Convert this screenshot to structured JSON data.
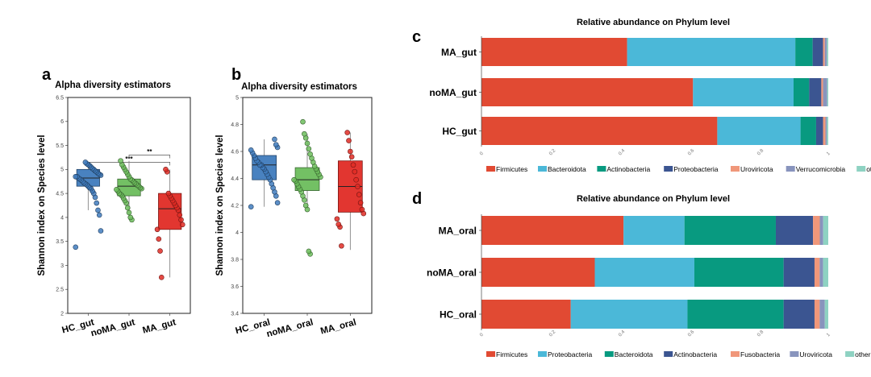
{
  "chart_data": [
    {
      "panel": "a",
      "type": "box",
      "title": "Alpha diversity estimators",
      "ylabel": "Shannon index on Species level",
      "ylim": [
        2,
        6.5
      ],
      "yticks": [
        2,
        2.5,
        3,
        3.5,
        4,
        4.5,
        5,
        5.5,
        6,
        6.5
      ],
      "groups": [
        {
          "name": "HC_gut",
          "color": "#3f7bbd",
          "q1": 4.65,
          "median": 4.82,
          "q3": 5.0,
          "whisker_low": 4.15,
          "whisker_high": 5.15,
          "points": [
            3.38,
            3.72,
            4.05,
            4.15,
            4.3,
            4.42,
            4.5,
            4.55,
            4.6,
            4.62,
            4.65,
            4.68,
            4.7,
            4.72,
            4.75,
            4.78,
            4.8,
            4.82,
            4.85,
            4.85,
            4.88,
            4.9,
            4.92,
            4.95,
            4.97,
            5.0,
            5.02,
            5.05,
            5.08,
            5.1,
            5.12,
            5.15
          ]
        },
        {
          "name": "noMA_gut",
          "color": "#6cbd5c",
          "q1": 4.45,
          "median": 4.65,
          "q3": 4.8,
          "whisker_low": 3.95,
          "whisker_high": 5.18,
          "points": [
            3.95,
            4.0,
            4.1,
            4.2,
            4.3,
            4.35,
            4.4,
            4.45,
            4.48,
            4.5,
            4.55,
            4.58,
            4.6,
            4.62,
            4.65,
            4.67,
            4.7,
            4.72,
            4.75,
            4.78,
            4.8,
            4.85,
            4.9,
            4.95,
            5.0,
            5.05,
            5.1,
            5.18
          ]
        },
        {
          "name": "MA_gut",
          "color": "#e02b25",
          "q1": 3.75,
          "median": 4.18,
          "q3": 4.5,
          "whisker_low": 2.75,
          "whisker_high": 5.0,
          "points": [
            2.75,
            3.3,
            3.55,
            3.75,
            3.85,
            3.95,
            4.05,
            4.15,
            4.2,
            4.25,
            4.3,
            4.35,
            4.4,
            4.45,
            4.5,
            4.95,
            5.0
          ]
        }
      ],
      "significance": [
        {
          "from": "HC_gut",
          "to": "MA_gut",
          "label": "***",
          "y": 5.15
        },
        {
          "from": "noMA_gut",
          "to": "MA_gut",
          "label": "**",
          "y": 5.3
        }
      ]
    },
    {
      "panel": "b",
      "type": "box",
      "title": "Alpha diversity estimators",
      "ylabel": "Shannon index on Species level",
      "ylim": [
        3.4,
        5.0
      ],
      "yticks": [
        3.4,
        3.6,
        3.8,
        4,
        4.2,
        4.4,
        4.6,
        4.8,
        5
      ],
      "groups": [
        {
          "name": "HC_oral",
          "color": "#3f7bbd",
          "q1": 4.39,
          "median": 4.5,
          "q3": 4.57,
          "whisker_low": 4.19,
          "whisker_high": 4.69,
          "points": [
            4.19,
            4.22,
            4.27,
            4.3,
            4.33,
            4.36,
            4.39,
            4.41,
            4.43,
            4.45,
            4.47,
            4.48,
            4.5,
            4.5,
            4.52,
            4.53,
            4.55,
            4.57,
            4.59,
            4.61,
            4.63,
            4.65,
            4.69
          ]
        },
        {
          "name": "noMA_oral",
          "color": "#6cbd5c",
          "q1": 4.31,
          "median": 4.39,
          "q3": 4.48,
          "whisker_low": 4.17,
          "whisker_high": 4.73,
          "points": [
            3.84,
            3.86,
            4.17,
            4.2,
            4.24,
            4.27,
            4.3,
            4.32,
            4.34,
            4.36,
            4.38,
            4.39,
            4.41,
            4.43,
            4.45,
            4.47,
            4.49,
            4.52,
            4.55,
            4.58,
            4.62,
            4.66,
            4.7,
            4.73,
            4.82
          ]
        },
        {
          "name": "MA_oral",
          "color": "#e02b25",
          "q1": 4.15,
          "median": 4.34,
          "q3": 4.53,
          "whisker_low": 3.87,
          "whisker_high": 4.74,
          "points": [
            3.9,
            4.04,
            4.06,
            4.1,
            4.14,
            4.17,
            4.22,
            4.28,
            4.34,
            4.39,
            4.45,
            4.5,
            4.56,
            4.6,
            4.68,
            4.74
          ]
        }
      ]
    },
    {
      "panel": "c",
      "type": "stacked_bar",
      "title": "Relative abundance on Phylum level",
      "categories": [
        "MA_gut",
        "noMA_gut",
        "HC_gut"
      ],
      "xlim": [
        0,
        1
      ],
      "xticks": [
        "0",
        "0.2",
        "0.4",
        "0.6",
        "0.8",
        "1"
      ],
      "series": [
        {
          "name": "Firmicutes",
          "color": "#e14a33",
          "values": [
            0.42,
            0.61,
            0.68
          ]
        },
        {
          "name": "Bacteroidota",
          "color": "#4bb8d8",
          "values": [
            0.485,
            0.29,
            0.24
          ]
        },
        {
          "name": "Actinobacteria",
          "color": "#089a80",
          "values": [
            0.05,
            0.045,
            0.045
          ]
        },
        {
          "name": "Proteobacteria",
          "color": "#3b5591",
          "values": [
            0.03,
            0.035,
            0.02
          ]
        },
        {
          "name": "Uroviricota",
          "color": "#f0977a",
          "values": [
            0.005,
            0.005,
            0.007
          ]
        },
        {
          "name": "Verrucomicrobia",
          "color": "#8894bd",
          "values": [
            0.006,
            0.012,
            0.004
          ]
        },
        {
          "name": "others",
          "color": "#8ed2c2",
          "values": [
            0.004,
            0.003,
            0.004
          ]
        }
      ]
    },
    {
      "panel": "d",
      "type": "stacked_bar",
      "title": "Relative abundance on Phylum level",
      "categories": [
        "MA_oral",
        "noMA_oral",
        "HC_oral"
      ],
      "xlim": [
        0,
        1
      ],
      "xticks": [
        "0",
        "0.2",
        "0.4",
        "0.6",
        "0.8",
        "1"
      ],
      "series": [
        {
          "name": "Firmicutes",
          "color": "#e14a33",
          "values": [
            0.42,
            0.33,
            0.26
          ]
        },
        {
          "name": "Proteobacteria",
          "color": "#4bb8d8",
          "values": [
            0.18,
            0.29,
            0.34
          ]
        },
        {
          "name": "Bacteroidota",
          "color": "#089a80",
          "values": [
            0.27,
            0.26,
            0.28
          ]
        },
        {
          "name": "Actinobacteria",
          "color": "#3b5591",
          "values": [
            0.11,
            0.09,
            0.09
          ]
        },
        {
          "name": "Fusobacteria",
          "color": "#f0977a",
          "values": [
            0.02,
            0.015,
            0.015
          ]
        },
        {
          "name": "Uroviricota",
          "color": "#8894bd",
          "values": [
            0.01,
            0.01,
            0.015
          ]
        },
        {
          "name": "others",
          "color": "#8ed2c2",
          "values": [
            0.015,
            0.015,
            0.01
          ]
        }
      ]
    }
  ]
}
